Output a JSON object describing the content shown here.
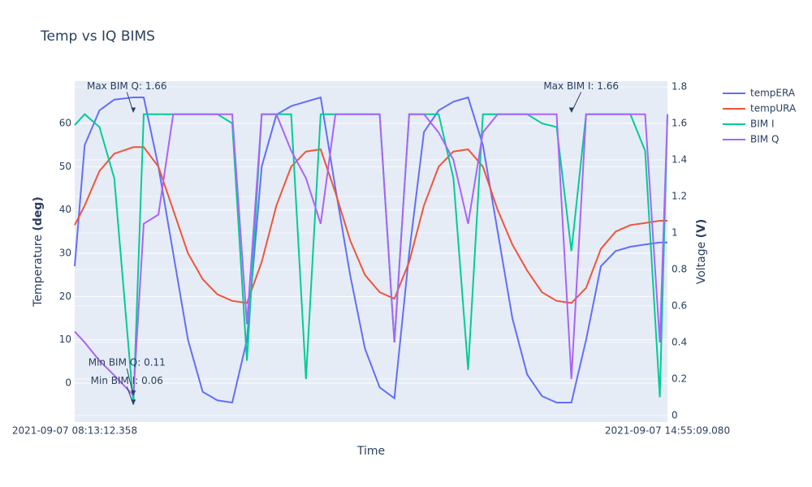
{
  "chart_data": {
    "type": "line",
    "title": "Temp vs IQ BIMS",
    "x_label": "Time",
    "y_label": {
      "text": "Temperature",
      "unit": "(deg)"
    },
    "y2_label": {
      "text": "Voltage",
      "unit": "(V)"
    },
    "x": [
      "2021-09-07 08:13:12.358",
      "2021-09-07 08:20:00",
      "2021-09-07 08:30:00",
      "2021-09-07 08:40:00",
      "2021-09-07 08:53:00",
      "2021-09-07 09:00:00",
      "2021-09-07 09:10:00",
      "2021-09-07 09:20:00",
      "2021-09-07 09:30:00",
      "2021-09-07 09:40:00",
      "2021-09-07 09:50:00",
      "2021-09-07 10:00:00",
      "2021-09-07 10:10:00",
      "2021-09-07 10:20:00",
      "2021-09-07 10:30:00",
      "2021-09-07 10:40:00",
      "2021-09-07 10:50:00",
      "2021-09-07 11:00:00",
      "2021-09-07 11:10:00",
      "2021-09-07 11:20:00",
      "2021-09-07 11:30:00",
      "2021-09-07 11:40:00",
      "2021-09-07 11:50:00",
      "2021-09-07 12:00:00",
      "2021-09-07 12:10:00",
      "2021-09-07 12:20:00",
      "2021-09-07 12:30:00",
      "2021-09-07 12:40:00",
      "2021-09-07 12:50:00",
      "2021-09-07 13:00:00",
      "2021-09-07 13:10:00",
      "2021-09-07 13:20:00",
      "2021-09-07 13:30:00",
      "2021-09-07 13:40:00",
      "2021-09-07 13:50:00",
      "2021-09-07 14:00:00",
      "2021-09-07 14:10:00",
      "2021-09-07 14:20:00",
      "2021-09-07 14:30:00",
      "2021-09-07 14:40:00",
      "2021-09-07 14:50:00",
      "2021-09-07 14:55:09.080"
    ],
    "series": [
      {
        "name": "tempERA",
        "color": "#636efa",
        "axis": "y",
        "values": [
          27,
          55,
          63,
          65.5,
          66,
          66,
          50,
          30,
          10,
          -2,
          -4,
          -4.5,
          10,
          50,
          62,
          64,
          65,
          66,
          45,
          25,
          8,
          -1,
          -3.5,
          30,
          58,
          63,
          65,
          66,
          55,
          35,
          15,
          2,
          -3,
          -4.5,
          -4.5,
          10,
          27,
          30.5,
          31.5,
          32,
          32.5,
          32.5
        ]
      },
      {
        "name": "tempURA",
        "color": "#EF553B",
        "axis": "y",
        "values": [
          36.5,
          41,
          49,
          53,
          54.5,
          54.5,
          50,
          40,
          30,
          24,
          20.5,
          19,
          18.5,
          28,
          41,
          50,
          53.5,
          54,
          44,
          33,
          25,
          21,
          19.5,
          28,
          41,
          50,
          53.5,
          54,
          50,
          40,
          32,
          26,
          21,
          19,
          18.5,
          22,
          31,
          35,
          36.5,
          37,
          37.5,
          37.5
        ]
      },
      {
        "name": "BIM I",
        "color": "#00cc96",
        "axis": "y2",
        "values": [
          1.59,
          1.65,
          1.58,
          1.3,
          0.06,
          1.65,
          1.65,
          1.65,
          1.65,
          1.65,
          1.65,
          1.6,
          0.3,
          1.65,
          1.65,
          1.65,
          0.2,
          1.65,
          1.65,
          1.65,
          1.65,
          1.65,
          0.4,
          1.65,
          1.65,
          1.65,
          1.3,
          0.25,
          1.65,
          1.65,
          1.65,
          1.65,
          1.6,
          1.58,
          0.9,
          1.65,
          1.65,
          1.65,
          1.65,
          1.45,
          0.1,
          1.65
        ]
      },
      {
        "name": "BIM Q",
        "color": "#ab63fa",
        "axis": "y2",
        "values": [
          0.46,
          0.4,
          0.3,
          0.22,
          0.11,
          1.05,
          1.1,
          1.65,
          1.65,
          1.65,
          1.65,
          1.65,
          0.5,
          1.65,
          1.65,
          1.45,
          1.3,
          1.05,
          1.65,
          1.65,
          1.65,
          1.65,
          0.4,
          1.65,
          1.65,
          1.55,
          1.4,
          1.05,
          1.55,
          1.65,
          1.65,
          1.65,
          1.65,
          1.65,
          0.2,
          1.65,
          1.65,
          1.65,
          1.65,
          1.65,
          0.4,
          1.65
        ]
      }
    ],
    "xlim": [
      "2021-09-07 08:13:12.358",
      "2021-09-07 14:55:09.080"
    ],
    "xticks": [
      "2021-09-07 08:13:12.358",
      "2021-09-07 14:55:09.080"
    ],
    "ylim": [
      -9,
      69.75
    ],
    "yticks": [
      0,
      10,
      20,
      30,
      40,
      50,
      60
    ],
    "y2lim": [
      -0.036,
      1.831
    ],
    "y2ticks": [
      0,
      0.2,
      0.4,
      0.6,
      0.8,
      1,
      1.2,
      1.4,
      1.6,
      1.8
    ],
    "grid": true,
    "legend": "outside-right",
    "annotations": [
      {
        "text": "Max BIM Q: 1.66",
        "x": "2021-09-07 08:53:00",
        "y": 1.66,
        "axis": "y2"
      },
      {
        "text": "Max BIM I: 1.66",
        "x": "2021-09-07 13:50:00",
        "y": 1.66,
        "axis": "y2"
      },
      {
        "text": "Min BIM Q: 0.11",
        "x": "2021-09-07 08:53:00",
        "y": 0.11,
        "axis": "y2"
      },
      {
        "text": "Min BIM I: 0.06",
        "x": "2021-09-07 08:53:00",
        "y": 0.06,
        "axis": "y2"
      }
    ]
  }
}
